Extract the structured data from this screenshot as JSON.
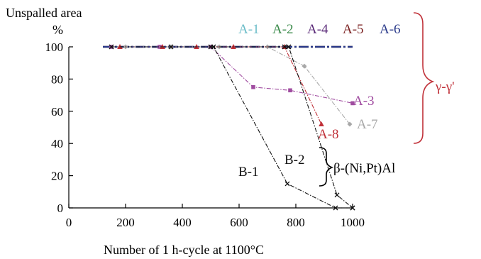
{
  "chart_data": {
    "type": "line",
    "ylabel": "Unspalled area",
    "yunit": "%",
    "xlabel": "Number of 1 h-cycle at 1100°C",
    "xlim": [
      0,
      1000
    ],
    "ylim": [
      0,
      100
    ],
    "xticks": [
      0,
      200,
      400,
      600,
      800,
      1000
    ],
    "yticks": [
      0,
      20,
      40,
      60,
      80,
      100
    ],
    "grid": false,
    "series": [
      {
        "name": "A-1",
        "color": "#6bbcc8",
        "marker": "none",
        "dash": "dashdot",
        "x": [
          120,
          1000
        ],
        "y": [
          100,
          100
        ]
      },
      {
        "name": "A-2",
        "color": "#3a8a4a",
        "marker": "none",
        "dash": "dashdot",
        "x": [
          120,
          1000
        ],
        "y": [
          100,
          100
        ]
      },
      {
        "name": "A-4",
        "color": "#5a2a78",
        "marker": "none",
        "dash": "dashdot",
        "x": [
          120,
          1000
        ],
        "y": [
          100,
          100
        ]
      },
      {
        "name": "A-5",
        "color": "#7a1f1f",
        "marker": "none",
        "dash": "dashdot",
        "x": [
          120,
          1000
        ],
        "y": [
          100,
          100
        ]
      },
      {
        "name": "A-6",
        "color": "#2a3a8a",
        "marker": "none",
        "dash": "dashdot",
        "x": [
          120,
          1000
        ],
        "y": [
          100,
          100
        ]
      },
      {
        "name": "A-3",
        "color": "#a04ca0",
        "marker": "square",
        "dash": "dashdot",
        "x": [
          150,
          320,
          500,
          650,
          780,
          1000
        ],
        "y": [
          100,
          100,
          100,
          75,
          73,
          65
        ]
      },
      {
        "name": "A-7",
        "color": "#a8a8a8",
        "marker": "diamond",
        "dash": "dashdot",
        "x": [
          200,
          360,
          530,
          700,
          830,
          990
        ],
        "y": [
          100,
          100,
          100,
          100,
          88,
          52
        ]
      },
      {
        "name": "A-8",
        "color": "#c03038",
        "marker": "triangle",
        "dash": "dashdot",
        "x": [
          180,
          330,
          450,
          580,
          760,
          890
        ],
        "y": [
          100,
          100,
          100,
          100,
          100,
          52
        ]
      },
      {
        "name": "B-1",
        "color": "#111111",
        "marker": "x",
        "dash": "dashdot",
        "x": [
          150,
          360,
          510,
          770,
          940,
          1000
        ],
        "y": [
          100,
          100,
          100,
          15,
          0,
          0
        ]
      },
      {
        "name": "B-2",
        "color": "#111111",
        "marker": "x",
        "dash": "dashdot",
        "x": [
          500,
          760,
          775,
          945,
          1000
        ],
        "y": [
          100,
          100,
          100,
          8,
          0
        ]
      }
    ],
    "annotations": [
      {
        "text": "γ-γ'",
        "color": "#c03038"
      },
      {
        "text": "β-(Ni,Pt)Al",
        "color": "#000000"
      }
    ]
  }
}
